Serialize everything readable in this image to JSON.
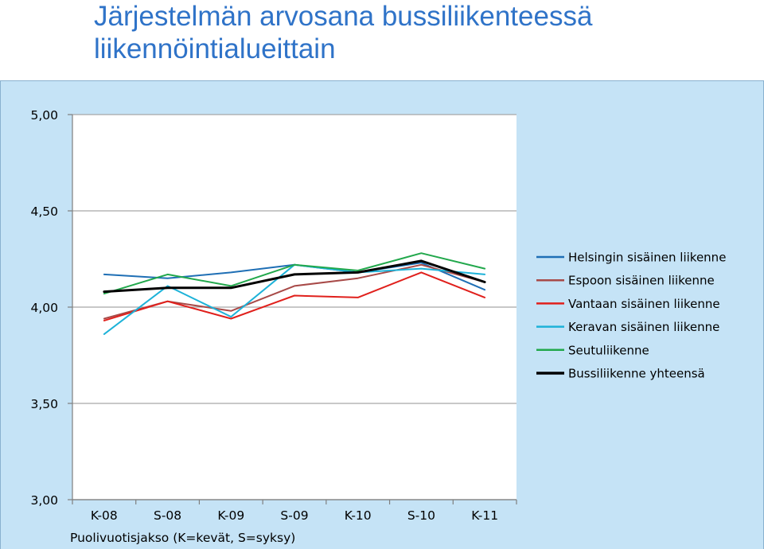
{
  "slide": {
    "title_line1": "Järjestelmän arvosana bussiliikenteessä",
    "title_line2": "liikennöintialueittain"
  },
  "chart_data": {
    "type": "line",
    "title": "",
    "xlabel": "Puolivuotisjakso (K=kevät, S=syksy)",
    "ylabel": "",
    "categories": [
      "K-08",
      "S-08",
      "K-09",
      "S-09",
      "K-10",
      "S-10",
      "K-11"
    ],
    "ylim": [
      3.0,
      5.0
    ],
    "yticks": [
      3.0,
      3.5,
      4.0,
      4.5,
      5.0
    ],
    "ytick_labels": [
      "3,00",
      "3,50",
      "4,00",
      "4,50",
      "5,00"
    ],
    "grid": true,
    "legend_position": "right",
    "series": [
      {
        "name": "Helsingin sisäinen liikenne",
        "color": "#1f6fb5",
        "width": 2,
        "values": [
          4.17,
          4.15,
          4.18,
          4.22,
          4.18,
          4.23,
          4.09
        ]
      },
      {
        "name": "Espoon sisäinen liikenne",
        "color": "#a84a48",
        "width": 2,
        "values": [
          3.94,
          4.03,
          3.98,
          4.11,
          4.15,
          4.22,
          4.13
        ]
      },
      {
        "name": "Vantaan sisäinen liikenne",
        "color": "#e0201c",
        "width": 2,
        "values": [
          3.93,
          4.03,
          3.94,
          4.06,
          4.05,
          4.18,
          4.05
        ]
      },
      {
        "name": "Keravan sisäinen liikenne",
        "color": "#1db2d8",
        "width": 2,
        "values": [
          3.86,
          4.11,
          3.95,
          4.22,
          4.18,
          4.2,
          4.17
        ]
      },
      {
        "name": "Seutuliikenne",
        "color": "#22a84c",
        "width": 2,
        "values": [
          4.07,
          4.17,
          4.11,
          4.22,
          4.19,
          4.28,
          4.2
        ]
      },
      {
        "name": "Bussiliikenne yhteensä",
        "color": "#000000",
        "width": 3,
        "values": [
          4.08,
          4.1,
          4.1,
          4.17,
          4.18,
          4.24,
          4.13
        ]
      }
    ]
  }
}
